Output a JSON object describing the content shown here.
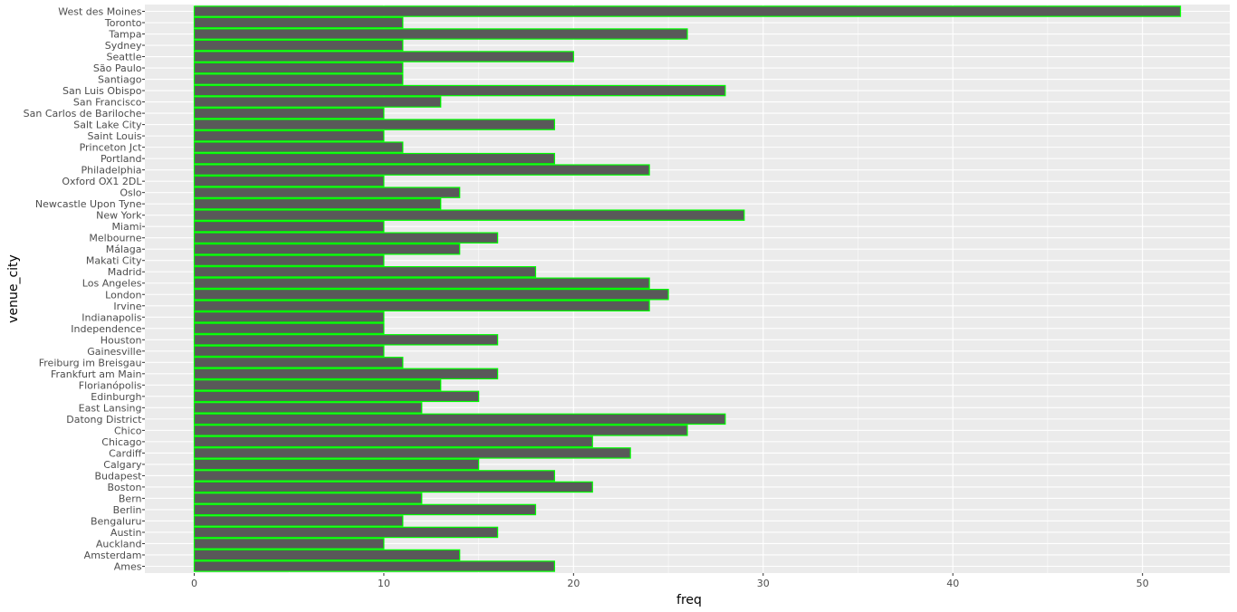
{
  "chart_data": {
    "type": "bar",
    "orientation": "horizontal",
    "xlabel": "freq",
    "ylabel": "venue_city",
    "xlim": [
      -2.6,
      54.6
    ],
    "x_ticks": [
      0,
      10,
      20,
      30,
      40,
      50
    ],
    "grid": true,
    "legend": "none",
    "colors": {
      "panel_background": "#ebebeb",
      "grid_major": "#ffffff",
      "bar_fill": "#595959",
      "bar_outline": "#00ff00"
    },
    "categories": [
      "Ames",
      "Amsterdam",
      "Auckland",
      "Austin",
      "Bengaluru",
      "Berlin",
      "Bern",
      "Boston",
      "Budapest",
      "Calgary",
      "Cardiff",
      "Chicago",
      "Chico",
      "Datong District",
      "East Lansing",
      "Edinburgh",
      "Florianópolis",
      "Frankfurt am Main",
      "Freiburg im Breisgau",
      "Gainesville",
      "Houston",
      "Independence",
      "Indianapolis",
      "Irvine",
      "London",
      "Los Angeles",
      "Madrid",
      "Makati City",
      "Málaga",
      "Melbourne",
      "Miami",
      "New York",
      "Newcastle Upon Tyne",
      "Oslo",
      "Oxford OX1 2DL",
      "Philadelphia",
      "Portland",
      "Princeton Jct",
      "Saint Louis",
      "Salt Lake City",
      "San Carlos de Bariloche",
      "San Francisco",
      "San Luis Obispo",
      "Santiago",
      "São Paulo",
      "Seattle",
      "Sydney",
      "Tampa",
      "Toronto",
      "West des Moines"
    ],
    "values": [
      19,
      14,
      10,
      16,
      11,
      18,
      12,
      21,
      19,
      15,
      23,
      21,
      26,
      28,
      12,
      15,
      13,
      16,
      11,
      10,
      16,
      10,
      10,
      24,
      25,
      24,
      18,
      10,
      14,
      16,
      10,
      29,
      13,
      14,
      10,
      24,
      19,
      11,
      10,
      19,
      10,
      13,
      28,
      11,
      11,
      20,
      11,
      26,
      11,
      52
    ]
  }
}
